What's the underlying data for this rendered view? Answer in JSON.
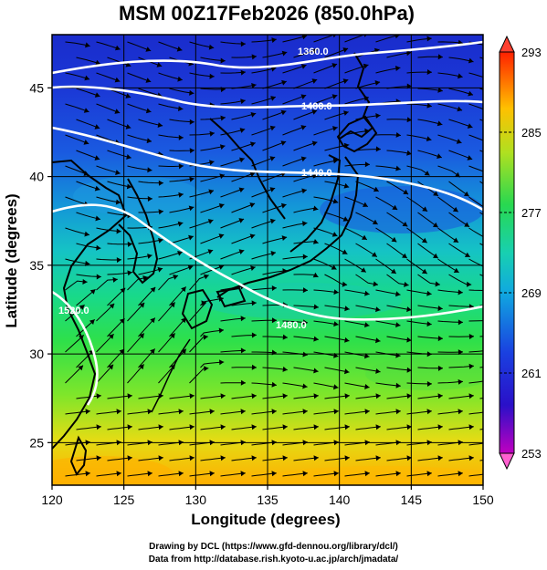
{
  "title": "MSM 00Z17Feb2026 (850.0hPa)",
  "xlabel": "Longitude (degrees)",
  "ylabel": "Latitude  (degrees)",
  "x_ticks": [
    "120",
    "125",
    "130",
    "135",
    "140",
    "145",
    "150"
  ],
  "y_ticks": [
    "25",
    "30",
    "35",
    "40",
    "45"
  ],
  "colorbar": {
    "ticks": [
      "293",
      "285",
      "277",
      "269",
      "261",
      "253"
    ],
    "min": 253,
    "max": 293
  },
  "contour_labels": [
    "1360.0",
    "1400.0",
    "1440.0",
    "1480.0",
    "1520.0"
  ],
  "credits": {
    "line1": "Drawing by DCL (https://www.gfd-dennou.org/library/dcl/)",
    "line2": "Data from http://database.rish.kyoto-u.ac.jp/arch/jmadata/"
  },
  "map": {
    "lon_range": [
      120,
      150
    ],
    "lat_range": [
      22.6,
      48
    ],
    "colors": {
      "cold": "#1a2fd8",
      "cool": "#1a78e0",
      "mid": "#18c4c0",
      "warm": "#1fd25a",
      "hot": "#ffc400",
      "contour": "#ffffff",
      "streamline": "#000000"
    }
  }
}
